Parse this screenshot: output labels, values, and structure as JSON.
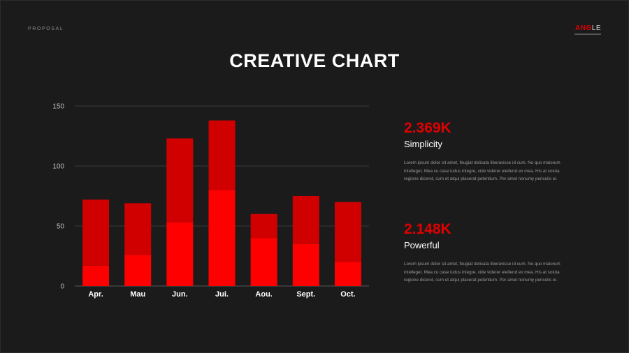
{
  "header": {
    "label": "PROPOSAL"
  },
  "logo": {
    "text_a": "ANG",
    "text_b": "LE"
  },
  "title": "CREATIVE CHART",
  "colors": {
    "background": "#1c1b1c",
    "accent": "#e00000",
    "bar_top": "#d10000",
    "bar_bottom": "#ff0000",
    "grid": "#3a393a"
  },
  "chart_data": {
    "type": "bar",
    "stacked": true,
    "categories": [
      "Apr.",
      "Mau",
      "Jun.",
      "Jui.",
      "Aou.",
      "Sept.",
      "Oct."
    ],
    "series": [
      {
        "values": [
          17,
          26,
          53,
          80,
          40,
          35,
          20
        ]
      },
      {
        "values": [
          55,
          43,
          70,
          58,
          20,
          40,
          50
        ]
      }
    ],
    "yticks": [
      0,
      50,
      100,
      150
    ],
    "ylim": [
      0,
      150
    ],
    "grid": true
  },
  "stats": [
    {
      "value": "2.369K",
      "label": "Simplicity",
      "text": "Lorem ipsum dolor sit amet, feugiat delicata liberavisse id cum. No quo maiorum intelleget. Mea cu case ludus integre, vide viderer eleifend ex mea. His at soluta regione diceret, cum et atqui placerat petentium. Per amet nonumy periculis ei."
    },
    {
      "value": "2.148K",
      "label": "Powerful",
      "text": "Lorem ipsum dolor sit amet, feugiat delicata liberavisse id cum. No quo maiorum intelleget. Mea cu case ludus integre, vide viderer eleifend ex mea. His at soluta regione diceret, cum et atqui placerat petentium. Per amet nonumy periculis ei."
    }
  ]
}
